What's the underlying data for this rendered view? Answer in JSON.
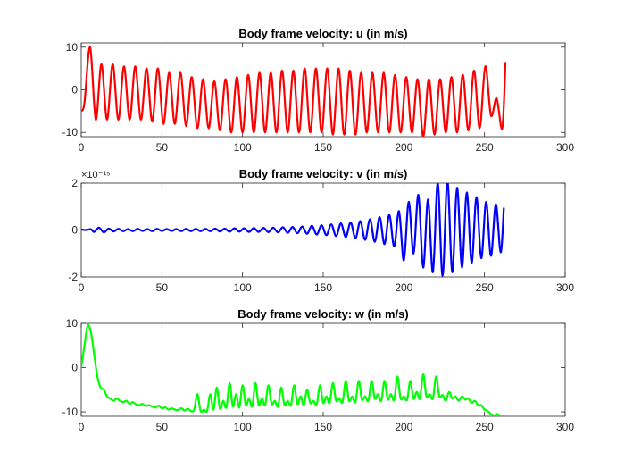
{
  "chart_data": [
    {
      "type": "line",
      "title": "Body frame velocity: u (in m/s)",
      "xlabel": "",
      "ylabel": "",
      "xlim": [
        0,
        300
      ],
      "ylim": [
        -11,
        11
      ],
      "xticks": [
        "0",
        "50",
        "100",
        "150",
        "200",
        "250",
        "300"
      ],
      "yticks": [
        "-10",
        "0",
        "10"
      ],
      "exponent": "",
      "grid": false,
      "color": "#ff0000",
      "series": [
        {
          "x": [
            0,
            2,
            5.5,
            9,
            12.5,
            16,
            19.5,
            23,
            26.5,
            30,
            33.5,
            37,
            40.5,
            44,
            47.5,
            51,
            54.5,
            58,
            61.5,
            65,
            68.5,
            72,
            75.5,
            79,
            82.5,
            86,
            89.5,
            93,
            96.5,
            100,
            103.5,
            107,
            110.5,
            114,
            117.5,
            121,
            124.5,
            128,
            131.5,
            135,
            138.5,
            142,
            145.5,
            149,
            152.5,
            156,
            159.5,
            163,
            166.5,
            170,
            173.5,
            177,
            180.5,
            184,
            187.5,
            191,
            194.5,
            198,
            201.5,
            205,
            208.5,
            212,
            215.5,
            219,
            222.5,
            226,
            229.5,
            233,
            236.5,
            240,
            243.5,
            247,
            250.5,
            254,
            257.5,
            261,
            263
          ],
          "values": [
            -5,
            -3,
            10,
            -7,
            6,
            -7,
            6,
            -7,
            5.5,
            -7,
            5.5,
            -7,
            5,
            -7.5,
            5,
            -8,
            4,
            -8,
            4,
            -8.5,
            3,
            -9,
            2.5,
            -9,
            2,
            -9.5,
            2.5,
            -10,
            3,
            -10,
            3.5,
            -10,
            4,
            -10,
            4,
            -10,
            4.5,
            -10,
            4.5,
            -10,
            5,
            -10,
            5,
            -10,
            5,
            -10.5,
            5,
            -10.5,
            4.5,
            -10.5,
            4,
            -10,
            4,
            -10,
            4,
            -10,
            3.5,
            -10,
            3,
            -10,
            2.5,
            -11,
            2.5,
            -10.5,
            2.5,
            -10,
            3,
            -10,
            3.5,
            -9.5,
            4.5,
            -9,
            5.5,
            -6,
            -2,
            -9,
            6.5
          ]
        }
      ]
    },
    {
      "type": "line",
      "title": "Body frame velocity: v (in m/s)",
      "xlabel": "",
      "ylabel": "",
      "xlim": [
        0,
        300
      ],
      "ylim": [
        -2,
        2
      ],
      "xticks": [
        "0",
        "50",
        "100",
        "150",
        "200",
        "250",
        "300"
      ],
      "yticks": [
        "-2",
        "0",
        "2"
      ],
      "exponent": "×10⁻¹⁵",
      "grid": false,
      "color": "#0000ff",
      "series": [
        {
          "x": [
            0,
            3,
            6,
            8,
            11,
            14,
            17,
            20,
            23,
            26,
            29,
            32,
            35,
            38,
            41,
            44,
            47,
            50,
            53,
            56,
            59,
            62,
            65,
            68,
            71,
            74,
            77,
            80,
            83,
            86,
            89,
            92,
            95,
            98,
            101,
            104,
            107,
            110,
            113,
            116,
            119,
            122,
            125,
            128,
            131,
            134,
            137,
            140,
            143,
            146,
            149,
            152,
            155,
            158,
            161,
            164,
            167,
            170,
            173,
            176,
            179,
            182,
            185,
            188,
            191,
            194,
            197,
            200,
            203,
            206,
            209,
            212,
            215,
            218,
            221,
            224,
            227,
            230,
            233,
            236,
            239,
            242,
            245,
            248,
            251,
            254,
            257,
            260,
            262
          ],
          "values": [
            0.02,
            0.0,
            0.03,
            -0.08,
            0.1,
            -0.1,
            0.06,
            -0.06,
            0.05,
            -0.05,
            0.04,
            -0.05,
            0.05,
            -0.04,
            0.04,
            -0.05,
            0.05,
            -0.04,
            0.04,
            -0.04,
            0.04,
            -0.05,
            0.05,
            -0.05,
            0.05,
            -0.05,
            0.05,
            -0.05,
            0.06,
            -0.06,
            0.06,
            -0.07,
            0.07,
            -0.07,
            0.07,
            -0.08,
            0.08,
            -0.08,
            0.09,
            -0.09,
            0.1,
            -0.1,
            0.12,
            -0.12,
            0.13,
            -0.14,
            0.15,
            -0.16,
            0.18,
            -0.19,
            0.2,
            -0.22,
            0.24,
            -0.26,
            0.28,
            -0.3,
            0.32,
            -0.35,
            0.38,
            -0.42,
            0.46,
            -0.5,
            0.55,
            -0.6,
            0.65,
            -0.7,
            0.8,
            -1.3,
            1.2,
            -1.0,
            1.5,
            -1.6,
            1.3,
            -1.8,
            2.0,
            -1.95,
            2.1,
            -1.8,
            1.8,
            -1.6,
            1.6,
            -1.4,
            1.4,
            -1.2,
            1.2,
            -1.1,
            1.1,
            -0.95,
            0.95
          ]
        }
      ]
    },
    {
      "type": "line",
      "title": "Body frame velocity: w (in m/s)",
      "xlabel": "",
      "ylabel": "",
      "xlim": [
        0,
        300
      ],
      "ylim": [
        -11,
        10
      ],
      "xticks": [
        "0",
        "50",
        "100",
        "150",
        "200",
        "250",
        "300"
      ],
      "yticks": [
        "-10",
        "0",
        "10"
      ],
      "exponent": "",
      "grid": false,
      "color": "#00ff00",
      "series": [
        {
          "x": [
            0,
            2,
            4,
            6,
            8,
            10,
            12,
            14,
            16,
            18,
            20,
            22,
            24,
            26,
            28,
            30,
            32,
            34,
            36,
            38,
            40,
            42,
            44,
            46,
            48,
            50,
            52,
            54,
            56,
            58,
            60,
            62,
            64,
            66,
            68,
            70,
            72,
            74,
            76,
            78,
            80,
            82,
            84,
            86,
            88,
            90,
            92,
            94,
            96,
            98,
            100,
            102,
            104,
            106,
            108,
            110,
            112,
            114,
            116,
            118,
            120,
            122,
            124,
            126,
            128,
            130,
            132,
            134,
            136,
            138,
            140,
            142,
            144,
            146,
            148,
            150,
            152,
            154,
            156,
            158,
            160,
            162,
            164,
            166,
            168,
            170,
            172,
            174,
            176,
            178,
            180,
            182,
            184,
            186,
            188,
            190,
            192,
            194,
            196,
            198,
            200,
            202,
            204,
            206,
            208,
            210,
            212,
            214,
            216,
            218,
            220,
            222,
            224,
            226,
            228,
            230,
            232,
            234,
            236,
            238,
            240,
            242,
            244,
            246,
            248,
            250,
            252,
            254,
            256,
            258,
            260,
            262
          ],
          "values": [
            0,
            5,
            9.5,
            8,
            3,
            -2,
            -4.5,
            -5,
            -6.5,
            -7,
            -7.5,
            -7,
            -7.5,
            -7.8,
            -7.5,
            -8.2,
            -7.8,
            -8.3,
            -8.5,
            -8.2,
            -8.7,
            -8.5,
            -8.8,
            -9,
            -8.6,
            -9.2,
            -9,
            -9.5,
            -9.2,
            -9.5,
            -9.6,
            -9.2,
            -9.7,
            -9.3,
            -9.8,
            -9.5,
            -6,
            -9.8,
            -9.5,
            -9.8,
            -6,
            -9.5,
            -4.5,
            -9.3,
            -7.5,
            -9,
            -3.5,
            -8.8,
            -6,
            -9,
            -4,
            -8.5,
            -7,
            -8.8,
            -3.5,
            -8.5,
            -7,
            -8.5,
            -4,
            -8.2,
            -7.5,
            -8.8,
            -4.5,
            -8.5,
            -7.5,
            -8.5,
            -4,
            -8.2,
            -6.5,
            -8.5,
            -5,
            -8,
            -7.5,
            -8.3,
            -4,
            -8,
            -6.5,
            -8,
            -3.5,
            -7.5,
            -7,
            -7.8,
            -3,
            -7.5,
            -6.5,
            -7.8,
            -3,
            -7.2,
            -6.5,
            -7.5,
            -3,
            -7,
            -6,
            -7.5,
            -3,
            -7.2,
            -6,
            -7.3,
            -2,
            -7,
            -6.5,
            -7.3,
            -3,
            -7,
            -5.5,
            -7,
            -1.5,
            -6.5,
            -6,
            -7,
            -2,
            -6.5,
            -6.2,
            -7.5,
            -5.5,
            -7,
            -6.5,
            -7.5,
            -6.5,
            -7.2,
            -7,
            -8,
            -7.5,
            -8.5,
            -8.5,
            -9.5,
            -9.8,
            -10.5,
            -10.8,
            -10.5,
            -11,
            -11
          ]
        }
      ]
    }
  ]
}
